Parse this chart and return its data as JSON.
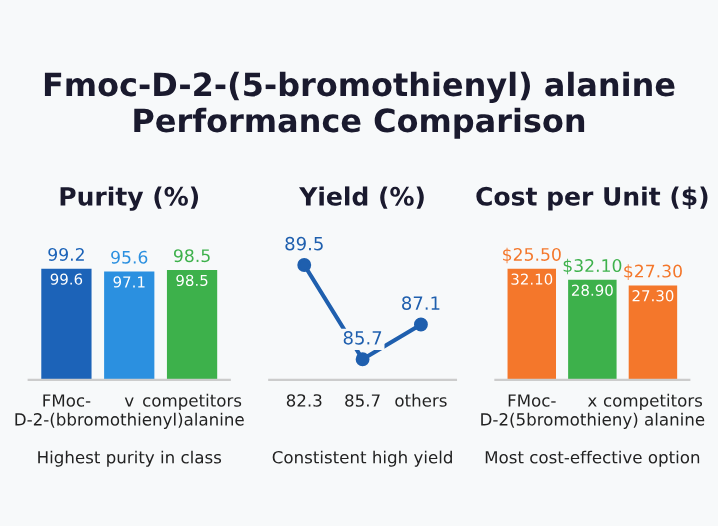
{
  "chart_data": [
    {
      "type": "other",
      "title": "Fmoc-D-2-(5-bromothienyl) alanine Performance Comparison"
    },
    {
      "type": "bar",
      "title": "Purity (%)",
      "categories": [
        "FMoc-",
        "v",
        "competitors"
      ],
      "xlabel": "D-2-(bbromothienyl)alanine",
      "values": [
        99.6,
        97.1,
        98.5
      ],
      "colors": [
        "#1c63b8",
        "#2b90e0",
        "#3db14b"
      ],
      "data_labels": true,
      "annotations": [
        {
          "text": "99.2",
          "x": "FMoc-",
          "y": 99.6
        },
        {
          "text": "95.6",
          "x": "v",
          "y": 97.1
        },
        {
          "text": "98.5",
          "x": "competitors",
          "y": 98.5
        },
        "Highest purity in class"
      ]
    },
    {
      "type": "line",
      "title": "Yield (%)",
      "categories": [
        "82.3",
        "85.7",
        "others"
      ],
      "values": [
        89.5,
        85.7,
        87.1
      ],
      "color": "#1f5fae",
      "marker": "circle",
      "data_labels": true,
      "annotations": [
        "Constistent high yield"
      ]
    },
    {
      "type": "bar",
      "title": "Cost per Unit ($)",
      "categories": [
        "FMoc-",
        "x",
        "competitors"
      ],
      "xlabel": "D-2(5bromothieny) alanine",
      "values": [
        32.1,
        28.9,
        27.3
      ],
      "value_labels": [
        "32.10",
        "28.90",
        "27.30"
      ],
      "colors": [
        "#f4772b",
        "#3db14b",
        "#f4772b"
      ],
      "annotations": [
        {
          "text": "$25.50",
          "x": "FMoc-",
          "y": 32.1
        },
        {
          "text": "$32.10",
          "x": "x",
          "y": 28.9
        },
        {
          "text": "$27.30",
          "x": "competitors",
          "y": 27.3
        },
        "Most cost-effective option"
      ]
    }
  ]
}
